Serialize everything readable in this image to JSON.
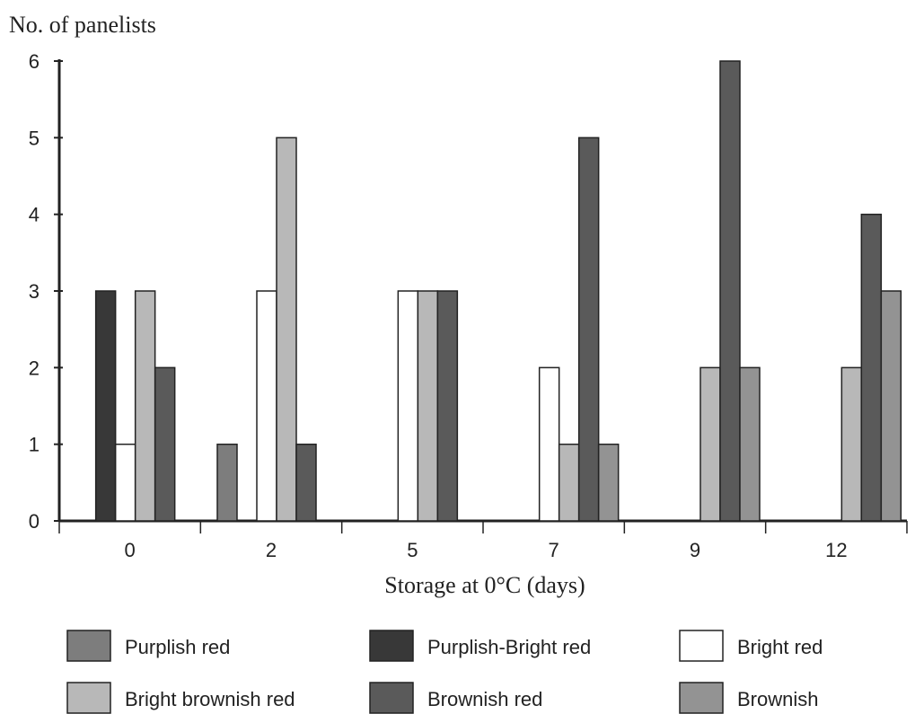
{
  "chart_data": {
    "type": "bar",
    "y_label": "No. of panelists",
    "x_label": "Storage at 0°C (days)",
    "categories": [
      "0",
      "2",
      "5",
      "7",
      "9",
      "12"
    ],
    "series": [
      {
        "name": "Purplish red",
        "color": "#7d7d7d",
        "values": [
          0,
          1,
          0,
          0,
          0,
          0
        ]
      },
      {
        "name": "Purplish-Bright red",
        "color": "#383838",
        "values": [
          3,
          0,
          0,
          0,
          0,
          0
        ]
      },
      {
        "name": "Bright red",
        "color": "#ffffff",
        "values": [
          1,
          3,
          3,
          2,
          0,
          0
        ]
      },
      {
        "name": "Bright brownish red",
        "color": "#b8b8b8",
        "values": [
          3,
          5,
          3,
          1,
          2,
          2
        ]
      },
      {
        "name": "Brownish red",
        "color": "#5a5a5a",
        "values": [
          2,
          1,
          3,
          5,
          6,
          4
        ]
      },
      {
        "name": "Brownish",
        "color": "#939393",
        "values": [
          0,
          0,
          0,
          1,
          2,
          3
        ]
      }
    ],
    "ylim": [
      0,
      6
    ],
    "yticks": [
      0,
      1,
      2,
      3,
      4,
      5,
      6
    ],
    "grid": false
  }
}
